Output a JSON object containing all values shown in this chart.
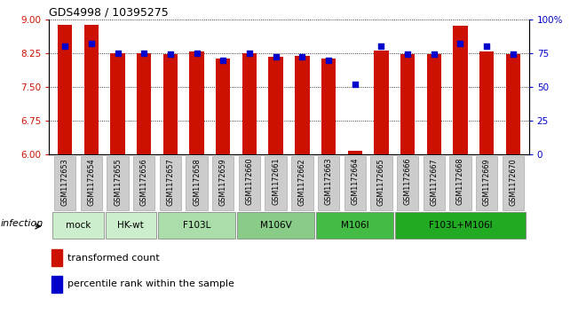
{
  "title": "GDS4998 / 10395275",
  "samples": [
    "GSM1172653",
    "GSM1172654",
    "GSM1172655",
    "GSM1172656",
    "GSM1172657",
    "GSM1172658",
    "GSM1172659",
    "GSM1172660",
    "GSM1172661",
    "GSM1172662",
    "GSM1172663",
    "GSM1172664",
    "GSM1172665",
    "GSM1172666",
    "GSM1172667",
    "GSM1172668",
    "GSM1172669",
    "GSM1172670"
  ],
  "transformed_counts": [
    8.87,
    8.88,
    8.25,
    8.25,
    8.22,
    8.28,
    8.13,
    8.25,
    8.17,
    8.18,
    8.13,
    6.08,
    8.3,
    8.22,
    8.22,
    8.86,
    8.28,
    8.22
  ],
  "percentile_ranks": [
    80,
    82,
    75,
    75,
    74,
    75,
    70,
    75,
    72,
    72,
    70,
    52,
    80,
    74,
    74,
    82,
    80,
    74
  ],
  "ylim_left": [
    6,
    9
  ],
  "ylim_right": [
    0,
    100
  ],
  "yticks_left": [
    6,
    6.75,
    7.5,
    8.25,
    9
  ],
  "yticks_right": [
    0,
    25,
    50,
    75,
    100
  ],
  "ytick_labels_right": [
    "0",
    "25",
    "50",
    "75",
    "100%"
  ],
  "bar_color": "#cc1100",
  "dot_color": "#0000cc",
  "groups": [
    {
      "label": "mock",
      "start": 0,
      "end": 2,
      "color": "#cceecc"
    },
    {
      "label": "HK-wt",
      "start": 2,
      "end": 4,
      "color": "#cceecc"
    },
    {
      "label": "F103L",
      "start": 4,
      "end": 7,
      "color": "#aaddaa"
    },
    {
      "label": "M106V",
      "start": 7,
      "end": 10,
      "color": "#88cc88"
    },
    {
      "label": "M106I",
      "start": 10,
      "end": 13,
      "color": "#44bb44"
    },
    {
      "label": "F103L+M106I",
      "start": 13,
      "end": 18,
      "color": "#22aa22"
    }
  ],
  "infection_label": "infection",
  "legend_red": "transformed count",
  "legend_blue": "percentile rank within the sample",
  "bar_width": 0.55,
  "background_color": "#ffffff",
  "sample_box_color": "#cccccc",
  "sample_box_edge": "#aaaaaa"
}
